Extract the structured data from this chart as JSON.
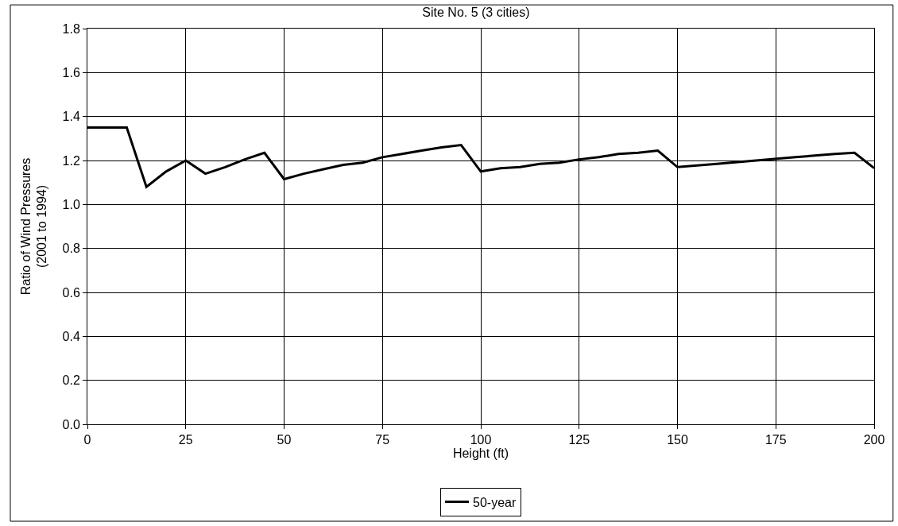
{
  "chart_data": {
    "type": "line",
    "title": "Site No. 5 (3 cities)",
    "xlabel": "Height (ft)",
    "ylabel": "Ratio of Wind Pressures\n(2001 to 1994)",
    "x": [
      0,
      5,
      10,
      15,
      20,
      25,
      30,
      35,
      40,
      45,
      50,
      55,
      60,
      65,
      70,
      75,
      80,
      85,
      90,
      95,
      100,
      105,
      110,
      115,
      120,
      125,
      130,
      135,
      140,
      145,
      150,
      160,
      170,
      180,
      190,
      195,
      200
    ],
    "series": [
      {
        "name": "50-year",
        "color": "#000000",
        "values": [
          1.35,
          1.35,
          1.35,
          1.08,
          1.15,
          1.2,
          1.14,
          1.17,
          1.205,
          1.235,
          1.115,
          1.14,
          1.16,
          1.18,
          1.19,
          1.215,
          1.23,
          1.245,
          1.26,
          1.27,
          1.15,
          1.165,
          1.17,
          1.185,
          1.19,
          1.205,
          1.215,
          1.23,
          1.235,
          1.245,
          1.17,
          1.185,
          1.2,
          1.215,
          1.23,
          1.235,
          1.165
        ]
      }
    ],
    "xlim": [
      0,
      200
    ],
    "xticks": [
      0,
      25,
      50,
      75,
      100,
      125,
      150,
      175,
      200
    ],
    "ylim": [
      0,
      1.8
    ],
    "yticks": [
      {
        "value": 0,
        "label": "0.0"
      },
      {
        "value": 0.2,
        "label": "0.2"
      },
      {
        "value": 0.4,
        "label": "0.4"
      },
      {
        "value": 0.6,
        "label": "0.6"
      },
      {
        "value": 0.8,
        "label": "0.8"
      },
      {
        "value": 1.0,
        "label": "1.0"
      },
      {
        "value": 1.2,
        "label": "1.2"
      },
      {
        "value": 1.4,
        "label": "1.4"
      },
      {
        "value": 1.6,
        "label": "1.6"
      },
      {
        "value": 1.8,
        "label": "1.8"
      }
    ],
    "grid": true,
    "legend": "bottom",
    "marker": "none",
    "line_style": "solid"
  }
}
